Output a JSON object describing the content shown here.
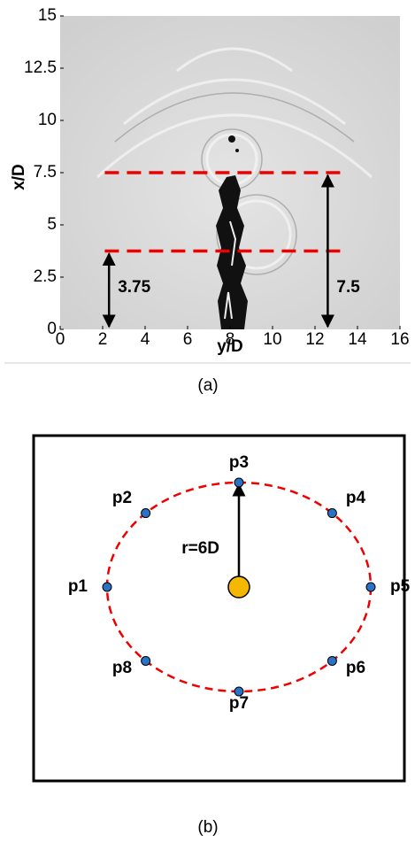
{
  "panel_a": {
    "xlabel": "y/D",
    "ylabel": "x/D",
    "xlim": [
      0,
      16
    ],
    "ylim": [
      0,
      15
    ],
    "xticks": [
      0,
      2,
      4,
      6,
      8,
      10,
      12,
      14,
      16
    ],
    "yticks": [
      0,
      2.5,
      5,
      7.5,
      10,
      12.5,
      15
    ],
    "levels": [
      3.75,
      7.5
    ],
    "caption": "(a)"
  },
  "panel_b": {
    "points": [
      "p1",
      "p2",
      "p3",
      "p4",
      "p5",
      "p6",
      "p7",
      "p8"
    ],
    "radius_label": "r=6D",
    "caption": "(b)"
  }
}
